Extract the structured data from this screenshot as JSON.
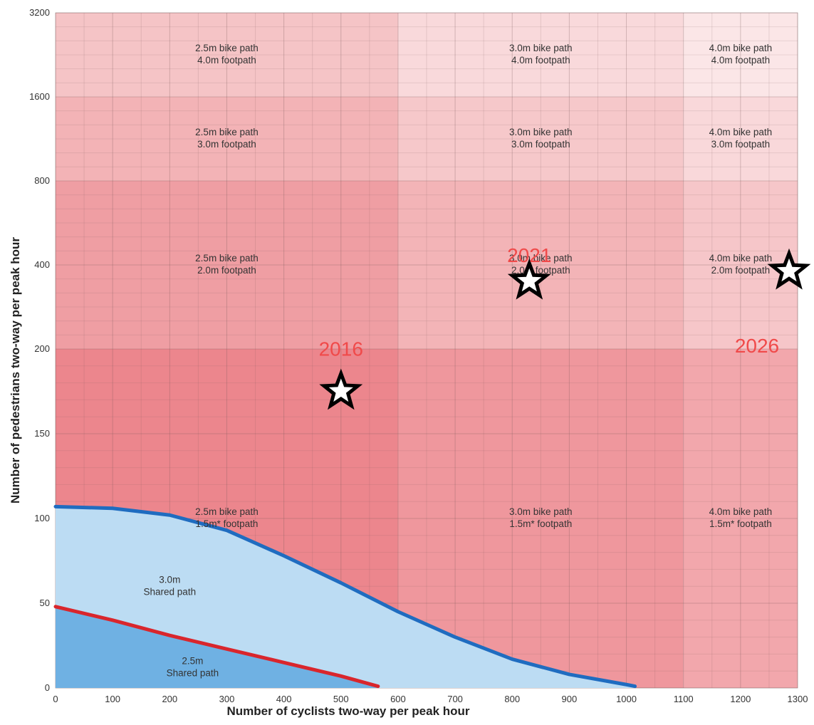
{
  "chart_data": {
    "type": "area",
    "title": "",
    "xlabel": "Number of cyclists two-way per peak hour",
    "ylabel": "Number of pedestrians two-way per peak hour",
    "x_ticks": [
      0,
      100,
      200,
      300,
      400,
      500,
      600,
      700,
      800,
      900,
      1000,
      1100,
      1200,
      1300
    ],
    "y_ticks": [
      0,
      50,
      100,
      150,
      200,
      400,
      800,
      1600,
      3200
    ],
    "xlim": [
      0,
      1300
    ],
    "ylim": [
      0,
      3200
    ],
    "y_scale": "piecewise (0–200 linear, 200–3200 doubling bands)",
    "grid": true,
    "zones": [
      {
        "x": [
          0,
          600
        ],
        "y": [
          1600,
          3200
        ],
        "line1": "2.5m bike path",
        "line2": "4.0m footpath",
        "color": "#f5c4c6"
      },
      {
        "x": [
          600,
          1100
        ],
        "y": [
          1600,
          3200
        ],
        "line1": "3.0m bike path",
        "line2": "4.0m footpath",
        "color": "#f9d9db"
      },
      {
        "x": [
          1100,
          1300
        ],
        "y": [
          1600,
          3200
        ],
        "line1": "4.0m bike path",
        "line2": "4.0m footpath",
        "color": "#fbe6e7"
      },
      {
        "x": [
          0,
          600
        ],
        "y": [
          800,
          1600
        ],
        "line1": "2.5m bike path",
        "line2": "3.0m footpath",
        "color": "#f3b3b6"
      },
      {
        "x": [
          600,
          1100
        ],
        "y": [
          800,
          1600
        ],
        "line1": "3.0m bike path",
        "line2": "3.0m footpath",
        "color": "#f6c8ca"
      },
      {
        "x": [
          1100,
          1300
        ],
        "y": [
          800,
          1600
        ],
        "line1": "4.0m bike path",
        "line2": "3.0m footpath",
        "color": "#f9d8da"
      },
      {
        "x": [
          0,
          600
        ],
        "y": [
          200,
          800
        ],
        "line1": "2.5m bike path",
        "line2": "2.0m footpath",
        "color": "#ef9ea3"
      },
      {
        "x": [
          600,
          1100
        ],
        "y": [
          200,
          800
        ],
        "line1": "3.0m bike path",
        "line2": "2.0m footpath",
        "color": "#f3b4b7"
      },
      {
        "x": [
          1100,
          1300
        ],
        "y": [
          200,
          800
        ],
        "line1": "4.0m bike path",
        "line2": "2.0m footpath",
        "color": "#f6c6c9"
      },
      {
        "x": [
          0,
          600
        ],
        "y": [
          0,
          200
        ],
        "line1": "2.5m bike path",
        "line2": "1.5m* footpath",
        "color": "#ec868d"
      },
      {
        "x": [
          600,
          1100
        ],
        "y": [
          0,
          200
        ],
        "line1": "3.0m bike path",
        "line2": "1.5m* footpath",
        "color": "#ef979d"
      },
      {
        "x": [
          1100,
          1300
        ],
        "y": [
          0,
          200
        ],
        "line1": "4.0m bike path",
        "line2": "1.5m* footpath",
        "color": "#f2a7ac"
      }
    ],
    "shared_zones": [
      {
        "name": "3.0m shared path",
        "line1": "3.0m",
        "line2": "Shared path",
        "label_at": [
          200,
          62
        ],
        "fill": "#bcdcf3",
        "boundary_color": "#1f6cc0",
        "boundary": [
          [
            0,
            107
          ],
          [
            100,
            106
          ],
          [
            200,
            102
          ],
          [
            300,
            93
          ],
          [
            400,
            78
          ],
          [
            500,
            62
          ],
          [
            600,
            45
          ],
          [
            700,
            30
          ],
          [
            800,
            17
          ],
          [
            900,
            8
          ],
          [
            1000,
            2
          ],
          [
            1015,
            1
          ]
        ]
      },
      {
        "name": "2.5m shared path",
        "line1": "2.5m",
        "line2": "Shared path",
        "label_at": [
          240,
          14
        ],
        "fill": "#6fb1e3",
        "boundary_color": "#d9262c",
        "boundary": [
          [
            0,
            48
          ],
          [
            100,
            40
          ],
          [
            200,
            31
          ],
          [
            300,
            23
          ],
          [
            400,
            15
          ],
          [
            500,
            7
          ],
          [
            565,
            1
          ]
        ]
      }
    ],
    "annotations": [
      {
        "label": "2016",
        "x": 500,
        "y": 175,
        "label_y": 196,
        "label_dx": 0
      },
      {
        "label": "2021",
        "x": 830,
        "y": 350,
        "label_y": 410,
        "label_dx": 0
      },
      {
        "label": "2026",
        "x": 1285,
        "y": 380,
        "label_y": 198,
        "label_dx": -45
      }
    ],
    "annotation_color": "#f04a4a"
  }
}
